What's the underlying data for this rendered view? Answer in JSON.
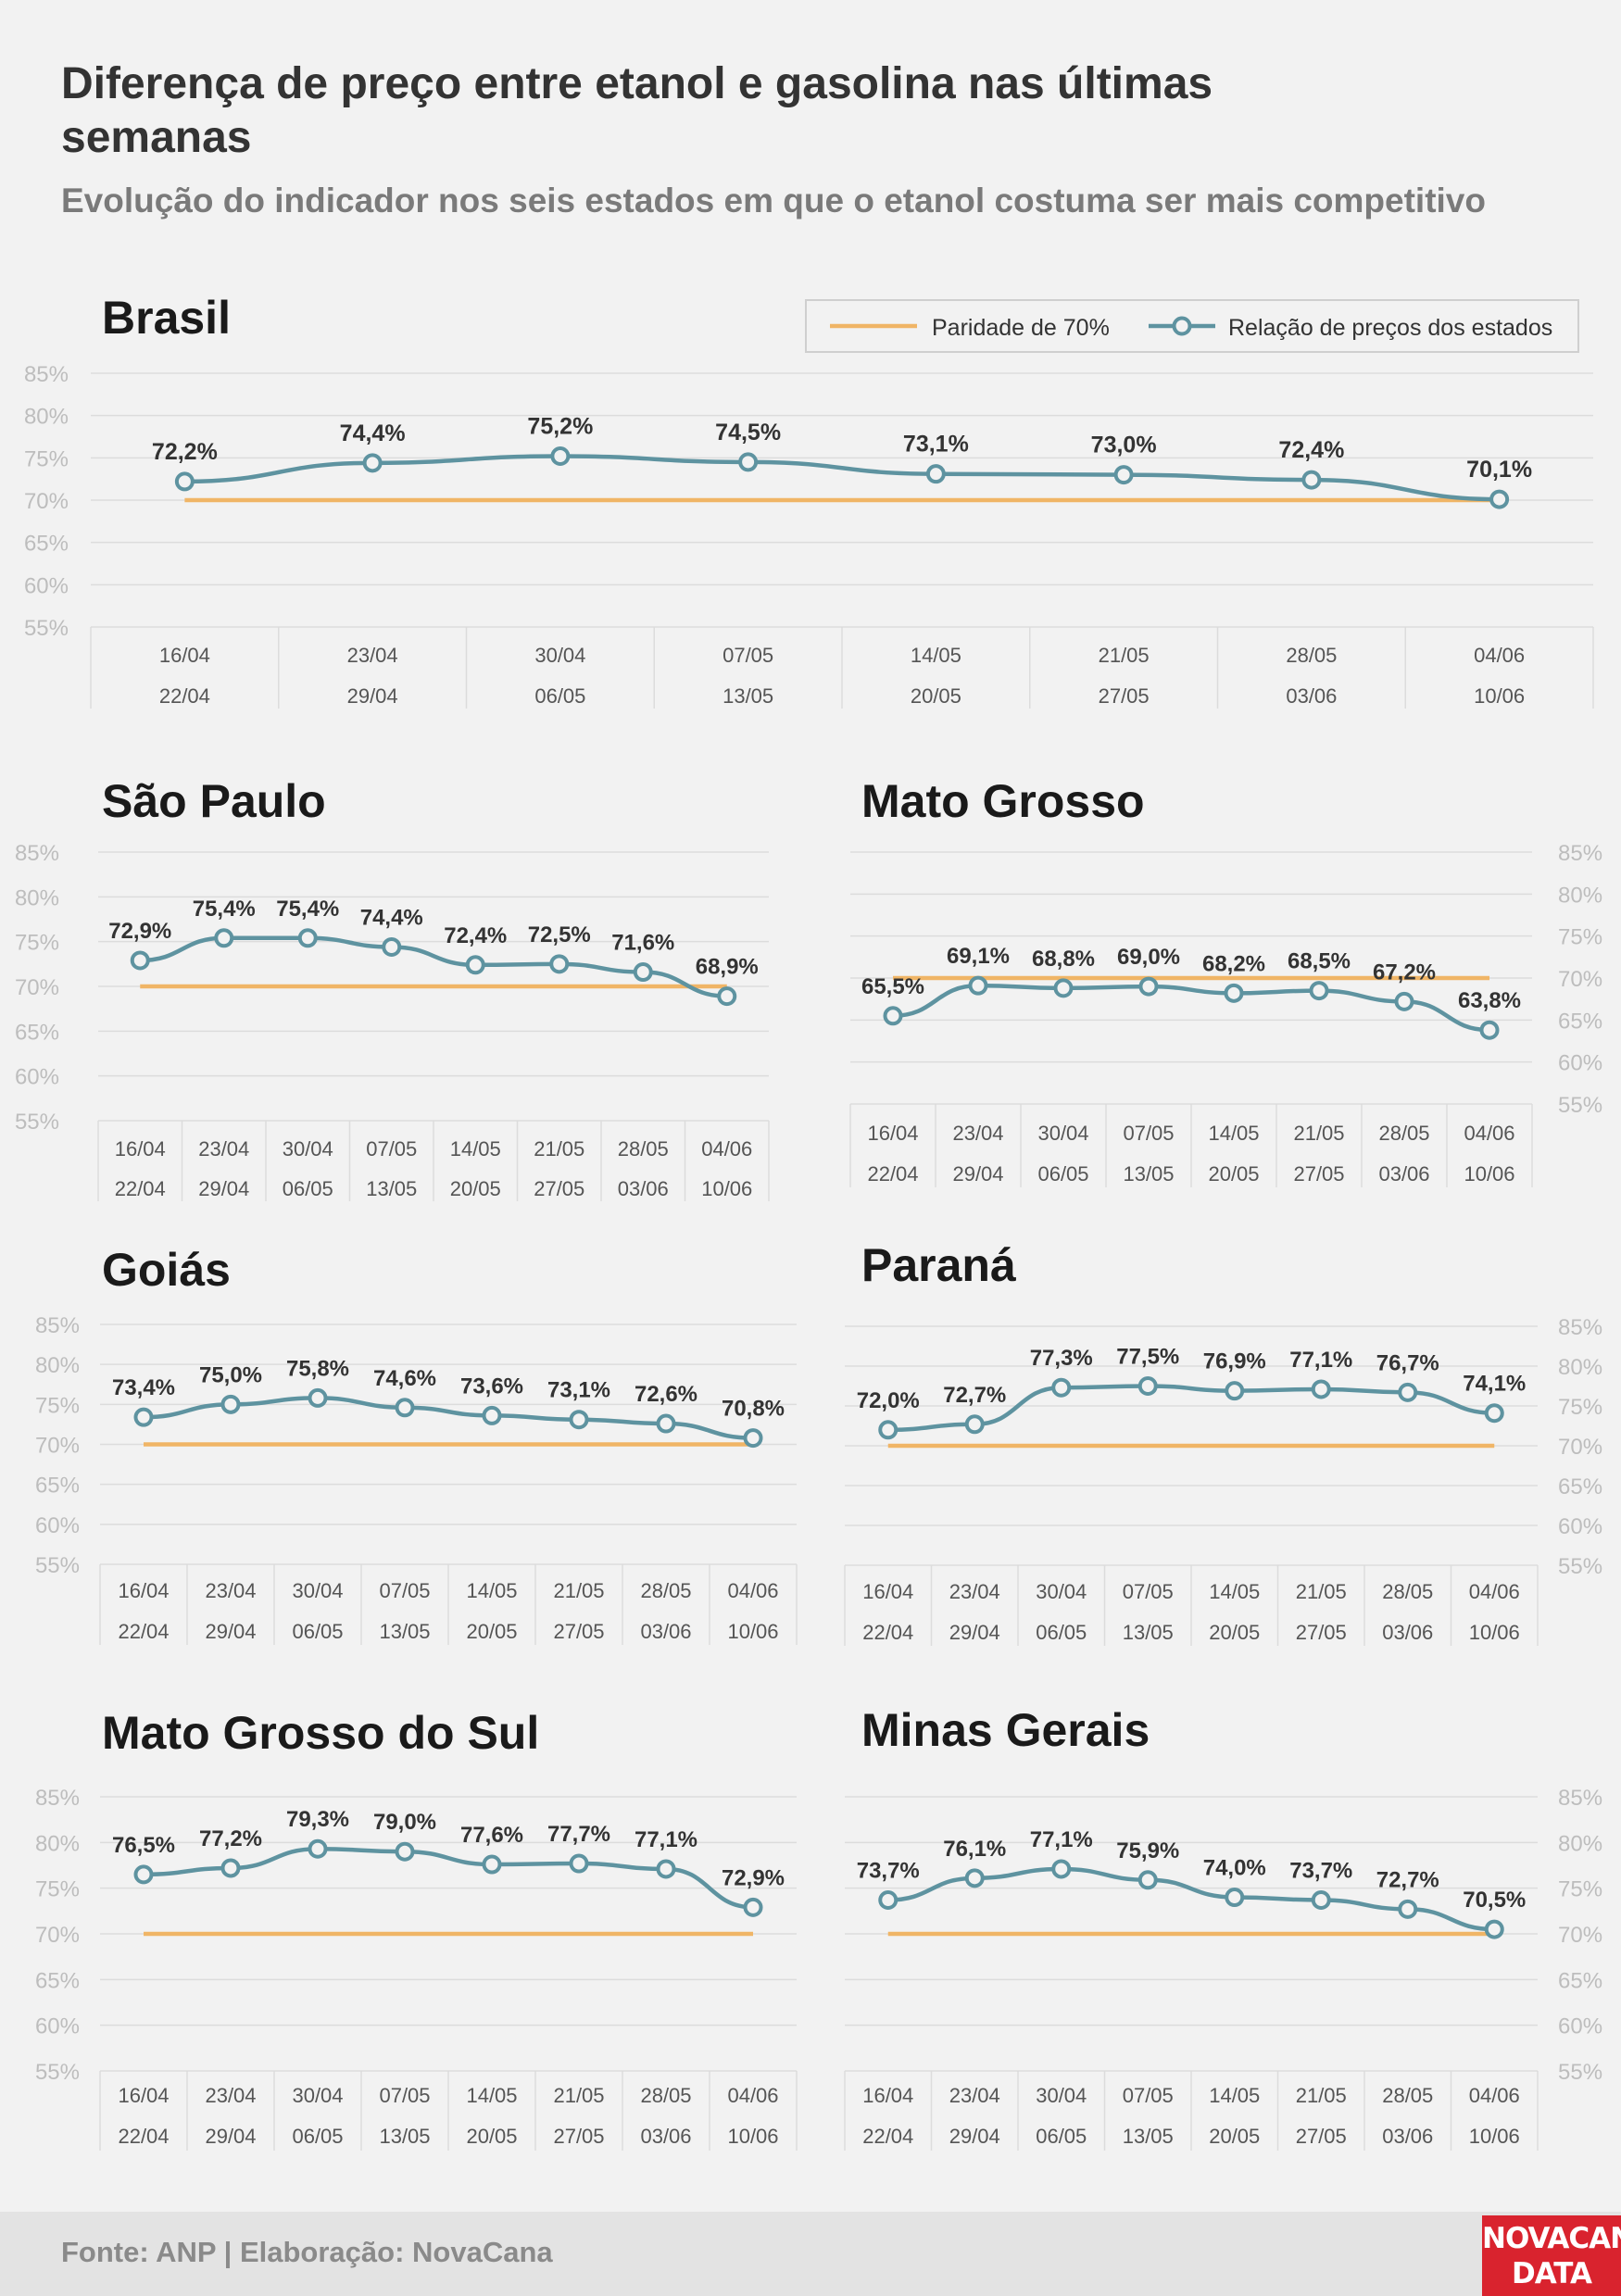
{
  "header": {
    "title": "Diferença de preço entre etanol e gasolina nas últimas semanas",
    "subtitle": "Evolução do indicador nos seis estados em que o etanol costuma ser mais competitivo"
  },
  "legend": {
    "parity_label": "Paridade de 70%",
    "series_label": "Relação de preços dos estados"
  },
  "colors": {
    "series": "#5e93a0",
    "parity": "#f0b566",
    "grid": "#dcdcdc",
    "axis_text": "#bdbdbd",
    "label_text": "#333333"
  },
  "footer": {
    "source": "Fonte: ANP | Elaboração: NovaCana",
    "logo_line1": "NOVACANA",
    "logo_line2": "DATA"
  },
  "chart_data": [
    {
      "type": "line",
      "title": "Brasil",
      "categories_start": [
        "16/04",
        "23/04",
        "30/04",
        "07/05",
        "14/05",
        "21/05",
        "28/05",
        "04/06"
      ],
      "categories_end": [
        "22/04",
        "29/04",
        "06/05",
        "13/05",
        "20/05",
        "27/05",
        "03/06",
        "10/06"
      ],
      "series": [
        {
          "name": "Relação de preços dos estados",
          "values": [
            72.2,
            74.4,
            75.2,
            74.5,
            73.1,
            73.0,
            72.4,
            70.1
          ],
          "labels": [
            "72,2%",
            "74,4%",
            "75,2%",
            "74,5%",
            "73,1%",
            "73,0%",
            "72,4%",
            "70,1%"
          ]
        }
      ],
      "parity": 70,
      "ylim": [
        55,
        85
      ],
      "yticks": [
        "55%",
        "60%",
        "65%",
        "70%",
        "75%",
        "80%",
        "85%"
      ],
      "y_axis_side": "left",
      "legend_position": "top-right"
    },
    {
      "type": "line",
      "title": "São Paulo",
      "categories_start": [
        "16/04",
        "23/04",
        "30/04",
        "07/05",
        "14/05",
        "21/05",
        "28/05",
        "04/06"
      ],
      "categories_end": [
        "22/04",
        "29/04",
        "06/05",
        "13/05",
        "20/05",
        "27/05",
        "03/06",
        "10/06"
      ],
      "series": [
        {
          "name": "Relação de preços dos estados",
          "values": [
            72.9,
            75.4,
            75.4,
            74.4,
            72.4,
            72.5,
            71.6,
            68.9
          ],
          "labels": [
            "72,9%",
            "75,4%",
            "75,4%",
            "74,4%",
            "72,4%",
            "72,5%",
            "71,6%",
            "68,9%"
          ]
        }
      ],
      "parity": 70,
      "ylim": [
        55,
        85
      ],
      "yticks": [
        "55%",
        "60%",
        "65%",
        "70%",
        "75%",
        "80%",
        "85%"
      ],
      "y_axis_side": "left"
    },
    {
      "type": "line",
      "title": "Mato Grosso",
      "categories_start": [
        "16/04",
        "23/04",
        "30/04",
        "07/05",
        "14/05",
        "21/05",
        "28/05",
        "04/06"
      ],
      "categories_end": [
        "22/04",
        "29/04",
        "06/05",
        "13/05",
        "20/05",
        "27/05",
        "03/06",
        "10/06"
      ],
      "series": [
        {
          "name": "Relação de preços dos estados",
          "values": [
            65.5,
            69.1,
            68.8,
            69.0,
            68.2,
            68.5,
            67.2,
            63.8
          ],
          "labels": [
            "65,5%",
            "69,1%",
            "68,8%",
            "69,0%",
            "68,2%",
            "68,5%",
            "67,2%",
            "63,8%"
          ]
        }
      ],
      "parity": 70,
      "ylim": [
        55,
        85
      ],
      "yticks": [
        "55%",
        "60%",
        "65%",
        "70%",
        "75%",
        "80%",
        "85%"
      ],
      "y_axis_side": "right"
    },
    {
      "type": "line",
      "title": "Goiás",
      "categories_start": [
        "16/04",
        "23/04",
        "30/04",
        "07/05",
        "14/05",
        "21/05",
        "28/05",
        "04/06"
      ],
      "categories_end": [
        "22/04",
        "29/04",
        "06/05",
        "13/05",
        "20/05",
        "27/05",
        "03/06",
        "10/06"
      ],
      "series": [
        {
          "name": "Relação de preços dos estados",
          "values": [
            73.4,
            75.0,
            75.8,
            74.6,
            73.6,
            73.1,
            72.6,
            70.8
          ],
          "labels": [
            "73,4%",
            "75,0%",
            "75,8%",
            "74,6%",
            "73,6%",
            "73,1%",
            "72,6%",
            "70,8%"
          ]
        }
      ],
      "parity": 70,
      "ylim": [
        55,
        85
      ],
      "yticks": [
        "55%",
        "60%",
        "65%",
        "70%",
        "75%",
        "80%",
        "85%"
      ],
      "y_axis_side": "left"
    },
    {
      "type": "line",
      "title": "Paraná",
      "categories_start": [
        "16/04",
        "23/04",
        "30/04",
        "07/05",
        "14/05",
        "21/05",
        "28/05",
        "04/06"
      ],
      "categories_end": [
        "22/04",
        "29/04",
        "06/05",
        "13/05",
        "20/05",
        "27/05",
        "03/06",
        "10/06"
      ],
      "series": [
        {
          "name": "Relação de preços dos estados",
          "values": [
            72.0,
            72.7,
            77.3,
            77.5,
            76.9,
            77.1,
            76.7,
            74.1
          ],
          "labels": [
            "72,0%",
            "72,7%",
            "77,3%",
            "77,5%",
            "76,9%",
            "77,1%",
            "76,7%",
            "74,1%"
          ]
        }
      ],
      "parity": 70,
      "ylim": [
        55,
        85
      ],
      "yticks": [
        "55%",
        "60%",
        "65%",
        "70%",
        "75%",
        "80%",
        "85%"
      ],
      "y_axis_side": "right"
    },
    {
      "type": "line",
      "title": "Mato Grosso do Sul",
      "categories_start": [
        "16/04",
        "23/04",
        "30/04",
        "07/05",
        "14/05",
        "21/05",
        "28/05",
        "04/06"
      ],
      "categories_end": [
        "22/04",
        "29/04",
        "06/05",
        "13/05",
        "20/05",
        "27/05",
        "03/06",
        "10/06"
      ],
      "series": [
        {
          "name": "Relação de preços dos estados",
          "values": [
            76.5,
            77.2,
            79.3,
            79.0,
            77.6,
            77.7,
            77.1,
            72.9
          ],
          "labels": [
            "76,5%",
            "77,2%",
            "79,3%",
            "79,0%",
            "77,6%",
            "77,7%",
            "77,1%",
            "72,9%"
          ]
        }
      ],
      "parity": 70,
      "ylim": [
        55,
        85
      ],
      "yticks": [
        "55%",
        "60%",
        "65%",
        "70%",
        "75%",
        "80%",
        "85%"
      ],
      "y_axis_side": "left"
    },
    {
      "type": "line",
      "title": "Minas Gerais",
      "categories_start": [
        "16/04",
        "23/04",
        "30/04",
        "07/05",
        "14/05",
        "21/05",
        "28/05",
        "04/06"
      ],
      "categories_end": [
        "22/04",
        "29/04",
        "06/05",
        "13/05",
        "20/05",
        "27/05",
        "03/06",
        "10/06"
      ],
      "series": [
        {
          "name": "Relação de preços dos estados",
          "values": [
            73.7,
            76.1,
            77.1,
            75.9,
            74.0,
            73.7,
            72.7,
            70.5
          ],
          "labels": [
            "73,7%",
            "76,1%",
            "77,1%",
            "75,9%",
            "74,0%",
            "73,7%",
            "72,7%",
            "70,5%"
          ]
        }
      ],
      "parity": 70,
      "ylim": [
        55,
        85
      ],
      "yticks": [
        "55%",
        "60%",
        "65%",
        "70%",
        "75%",
        "80%",
        "85%"
      ],
      "y_axis_side": "right"
    }
  ]
}
